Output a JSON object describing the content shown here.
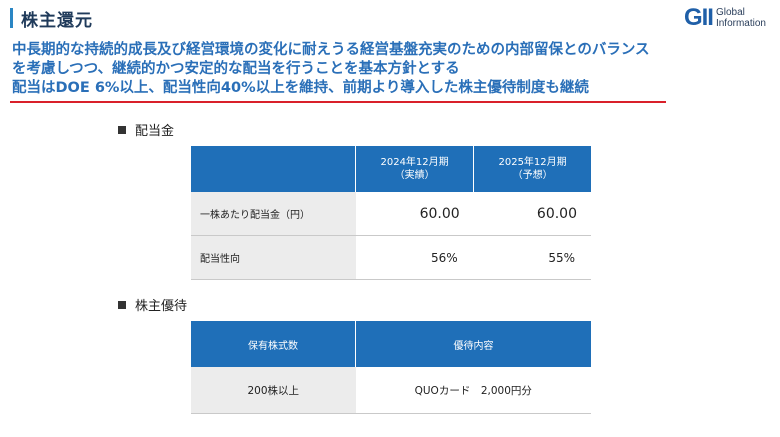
{
  "header": {
    "title": "株主還元",
    "logo_mark": "GII",
    "logo_line1": "Global",
    "logo_line2": "Information"
  },
  "policy": {
    "line1": "中長期的な持続的成長及び経営環境の変化に耐えうる経営基盤充実のための内部留保とのバランス",
    "line2": "を考慮しつつ、継続的かつ安定的な配当を行うことを基本方針とする",
    "line3": "配当はDOE 6%以上、配当性向40%以上を維持、前期より導入した株主優待制度も継続"
  },
  "dividend_section": {
    "heading": "配当金",
    "col1_line1": "2024年12月期",
    "col1_line2": "（実績）",
    "col2_line1": "2025年12月期",
    "col2_line2": "（予想）",
    "rows": [
      {
        "label": "一株あたり配当金（円）",
        "v1": "60.00",
        "v2": "60.00"
      },
      {
        "label": "配当性向",
        "v1": "56%",
        "v2": "55%"
      }
    ]
  },
  "benefit_section": {
    "heading": "株主優待",
    "col1": "保有株式数",
    "col2": "優待内容",
    "rows": [
      {
        "shares": "200株以上",
        "benefit": "QUOカード　2,000円分"
      }
    ]
  },
  "colors": {
    "accent_blue": "#1f6fb8",
    "policy_text": "#2a6fb8",
    "underline_red": "#d9202a"
  }
}
